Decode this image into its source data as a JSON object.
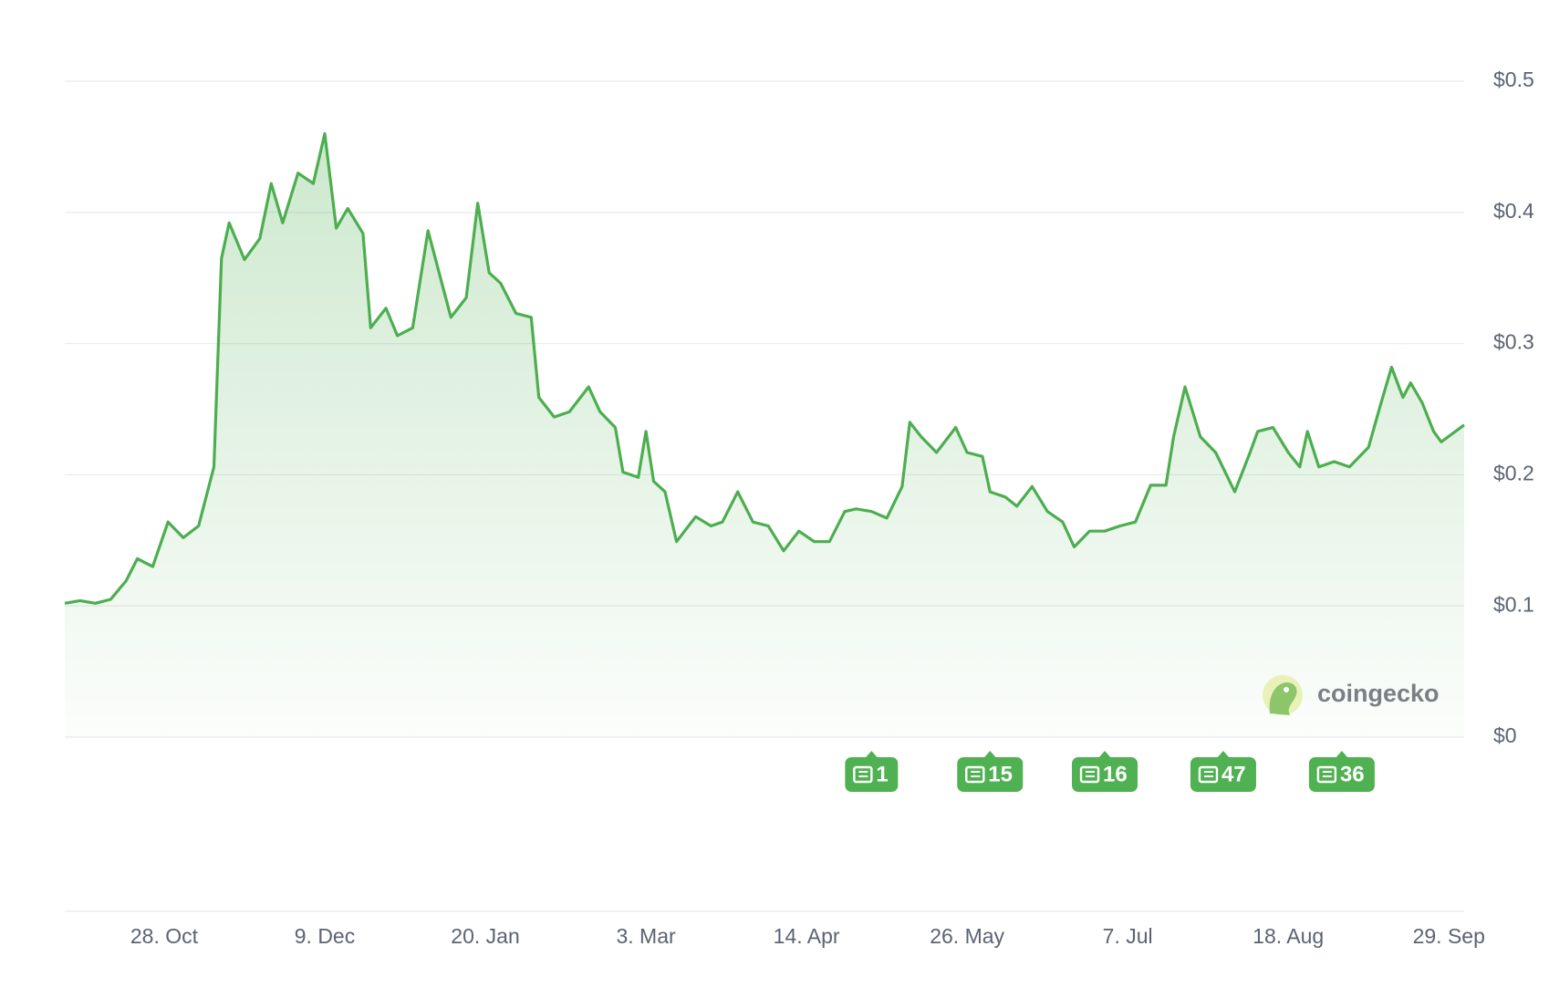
{
  "chart_data": {
    "type": "line",
    "x": [
      0,
      4,
      8,
      12,
      16,
      19,
      23,
      27,
      31,
      35,
      39,
      41,
      43,
      47,
      51,
      54,
      57,
      61,
      65,
      68,
      71,
      74,
      78,
      80,
      84,
      87,
      91,
      95,
      99,
      101,
      105,
      108,
      111,
      114,
      118,
      122,
      124,
      128,
      132,
      137,
      140,
      144,
      146,
      150,
      152,
      154,
      157,
      160,
      165,
      169,
      172,
      176,
      180,
      184,
      188,
      192,
      196,
      200,
      204,
      207,
      211,
      215,
      219,
      221,
      224,
      228,
      233,
      236,
      240,
      242,
      246,
      249,
      253,
      257,
      261,
      264,
      268,
      272,
      276,
      280,
      284,
      288,
      290,
      293,
      297,
      301,
      306,
      310,
      312,
      316,
      320,
      323,
      325,
      328,
      332,
      336,
      341,
      344,
      347,
      350,
      352,
      355,
      358,
      360,
      366
    ],
    "values": [
      0.102,
      0.104,
      0.102,
      0.105,
      0.119,
      0.136,
      0.13,
      0.164,
      0.152,
      0.161,
      0.206,
      0.365,
      0.392,
      0.364,
      0.38,
      0.422,
      0.392,
      0.43,
      0.422,
      0.46,
      0.388,
      0.403,
      0.384,
      0.312,
      0.327,
      0.306,
      0.312,
      0.386,
      0.342,
      0.32,
      0.335,
      0.407,
      0.354,
      0.346,
      0.323,
      0.32,
      0.259,
      0.244,
      0.248,
      0.267,
      0.248,
      0.236,
      0.202,
      0.198,
      0.233,
      0.195,
      0.187,
      0.149,
      0.168,
      0.161,
      0.164,
      0.187,
      0.164,
      0.161,
      0.142,
      0.157,
      0.149,
      0.149,
      0.172,
      0.174,
      0.172,
      0.167,
      0.191,
      0.24,
      0.229,
      0.217,
      0.236,
      0.217,
      0.214,
      0.187,
      0.183,
      0.176,
      0.191,
      0.172,
      0.164,
      0.145,
      0.157,
      0.157,
      0.161,
      0.164,
      0.192,
      0.192,
      0.229,
      0.267,
      0.229,
      0.217,
      0.187,
      0.217,
      0.233,
      0.236,
      0.217,
      0.206,
      0.233,
      0.206,
      0.21,
      0.206,
      0.221,
      0.252,
      0.282,
      0.259,
      0.27,
      0.255,
      0.233,
      0.225,
      0.238
    ],
    "color": "#4cae4f",
    "xlim": [
      0,
      366
    ],
    "xticks": [
      {
        "value": 26,
        "label": "28. Oct"
      },
      {
        "value": 68,
        "label": "9. Dec"
      },
      {
        "value": 110,
        "label": "20. Jan"
      },
      {
        "value": 152,
        "label": "3. Mar"
      },
      {
        "value": 194,
        "label": "14. Apr"
      },
      {
        "value": 236,
        "label": "26. May"
      },
      {
        "value": 278,
        "label": "7. Jul"
      },
      {
        "value": 320,
        "label": "18. Aug"
      },
      {
        "value": 362,
        "label": "29. Sep"
      }
    ],
    "ylim": [
      0,
      0.5
    ],
    "yticks": [
      {
        "value": 0,
        "label": "$0"
      },
      {
        "value": 0.1,
        "label": "$0.1"
      },
      {
        "value": 0.2,
        "label": "$0.2"
      },
      {
        "value": 0.3,
        "label": "$0.3"
      },
      {
        "value": 0.4,
        "label": "$0.4"
      },
      {
        "value": 0.5,
        "label": "$0.5"
      }
    ],
    "grid": true,
    "annotations": [
      {
        "x": 211,
        "text": "1"
      },
      {
        "x": 242,
        "text": "15"
      },
      {
        "x": 272,
        "text": "16"
      },
      {
        "x": 303,
        "text": "47"
      },
      {
        "x": 334,
        "text": "36"
      }
    ],
    "watermark": "coingecko"
  }
}
